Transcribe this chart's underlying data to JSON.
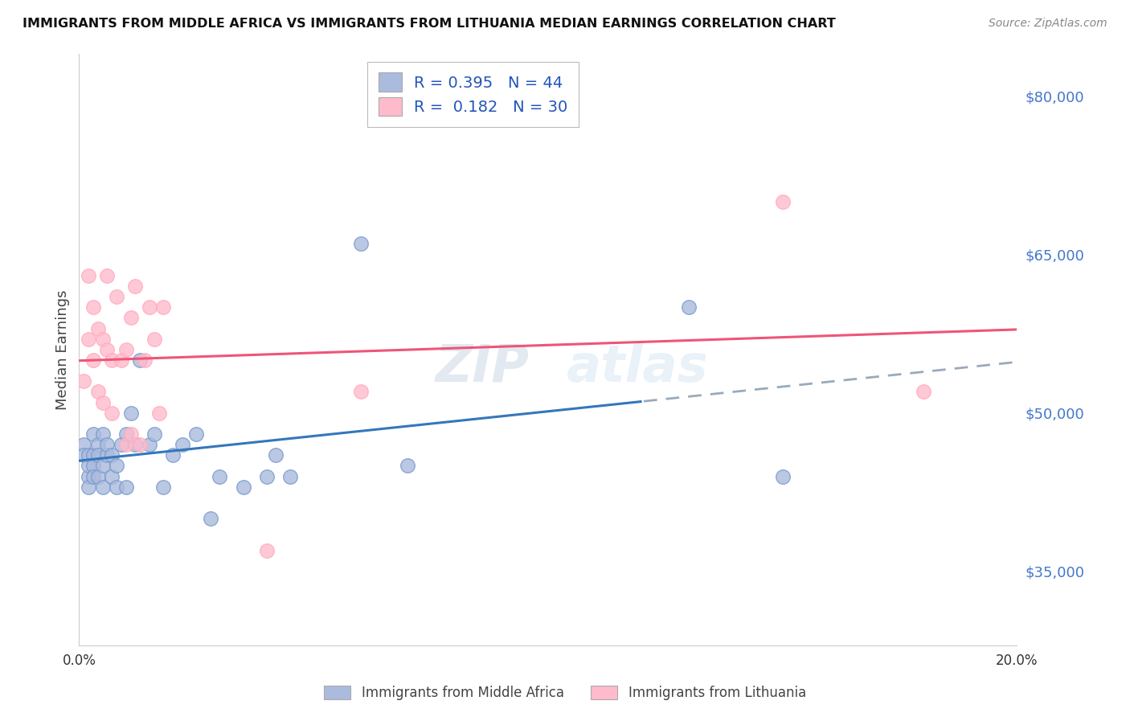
{
  "title": "IMMIGRANTS FROM MIDDLE AFRICA VS IMMIGRANTS FROM LITHUANIA MEDIAN EARNINGS CORRELATION CHART",
  "source": "Source: ZipAtlas.com",
  "ylabel": "Median Earnings",
  "xlim": [
    0.0,
    0.2
  ],
  "ylim": [
    28000,
    84000
  ],
  "yticks": [
    35000,
    50000,
    65000,
    80000
  ],
  "ytick_labels": [
    "$35,000",
    "$50,000",
    "$65,000",
    "$80,000"
  ],
  "xticks": [
    0.0,
    0.04,
    0.08,
    0.12,
    0.16,
    0.2
  ],
  "xtick_labels": [
    "0.0%",
    "",
    "",
    "",
    "",
    "20.0%"
  ],
  "background_color": "#ffffff",
  "grid_color": "#cccccc",
  "blue_color": "#aabbdd",
  "blue_edge_color": "#7799cc",
  "pink_color": "#ffbbcc",
  "pink_edge_color": "#ffaabb",
  "blue_line_color": "#3377bb",
  "pink_line_color": "#ee5577",
  "dash_line_color": "#99aabb",
  "legend_R1": "0.395",
  "legend_N1": "44",
  "legend_R2": "0.182",
  "legend_N2": "30",
  "blue_scatter_x": [
    0.001,
    0.001,
    0.002,
    0.002,
    0.002,
    0.002,
    0.003,
    0.003,
    0.003,
    0.003,
    0.004,
    0.004,
    0.004,
    0.005,
    0.005,
    0.005,
    0.006,
    0.006,
    0.007,
    0.007,
    0.008,
    0.008,
    0.009,
    0.01,
    0.01,
    0.011,
    0.012,
    0.013,
    0.015,
    0.016,
    0.018,
    0.02,
    0.022,
    0.025,
    0.028,
    0.03,
    0.035,
    0.04,
    0.042,
    0.045,
    0.06,
    0.07,
    0.13,
    0.15
  ],
  "blue_scatter_y": [
    47000,
    46000,
    44000,
    46000,
    45000,
    43000,
    48000,
    46000,
    45000,
    44000,
    47000,
    44000,
    46000,
    48000,
    45000,
    43000,
    46000,
    47000,
    46000,
    44000,
    45000,
    43000,
    47000,
    48000,
    43000,
    50000,
    47000,
    55000,
    47000,
    48000,
    43000,
    46000,
    47000,
    48000,
    40000,
    44000,
    43000,
    44000,
    46000,
    44000,
    66000,
    45000,
    60000,
    44000
  ],
  "pink_scatter_x": [
    0.001,
    0.002,
    0.002,
    0.003,
    0.003,
    0.004,
    0.004,
    0.005,
    0.005,
    0.006,
    0.006,
    0.007,
    0.007,
    0.008,
    0.009,
    0.01,
    0.01,
    0.011,
    0.011,
    0.012,
    0.013,
    0.014,
    0.015,
    0.016,
    0.017,
    0.018,
    0.04,
    0.06,
    0.15,
    0.18
  ],
  "pink_scatter_y": [
    53000,
    63000,
    57000,
    60000,
    55000,
    58000,
    52000,
    57000,
    51000,
    63000,
    56000,
    55000,
    50000,
    61000,
    55000,
    56000,
    47000,
    59000,
    48000,
    62000,
    47000,
    55000,
    60000,
    57000,
    50000,
    60000,
    37000,
    52000,
    70000,
    52000
  ]
}
